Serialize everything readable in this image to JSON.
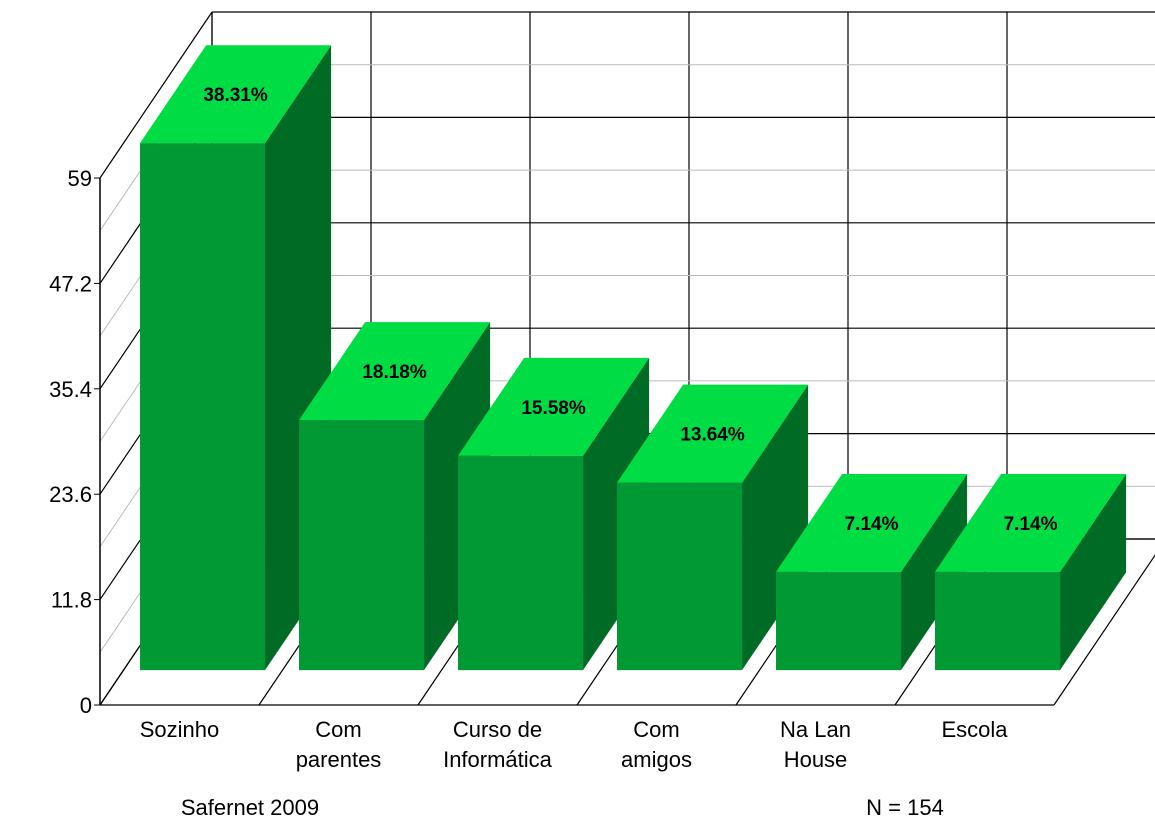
{
  "chart_data": {
    "type": "bar3d",
    "categories": [
      [
        "Sozinho"
      ],
      [
        "Com",
        "parentes"
      ],
      [
        "Curso de",
        "Informática"
      ],
      [
        "Com",
        "amigos"
      ],
      [
        "Na Lan",
        "House"
      ],
      [
        "Escola"
      ]
    ],
    "values": [
      59,
      28,
      24,
      21,
      11,
      11
    ],
    "value_labels": [
      "38.31%",
      "18.18%",
      "15.58%",
      "13.64%",
      "7.14%",
      "7.14%"
    ],
    "colors": {
      "front": "#009933",
      "side": "#006b24",
      "top": "#00dd44"
    },
    "ylim": [
      0,
      59
    ],
    "yticks": [
      0,
      11.8,
      23.6,
      35.4,
      47.2,
      59
    ],
    "grid": true,
    "annotations": [
      "Safernet 2009",
      "N = 154"
    ]
  }
}
